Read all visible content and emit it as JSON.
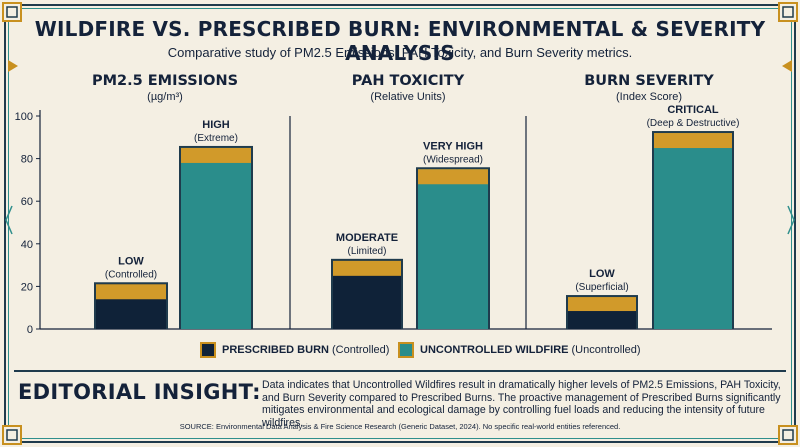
{
  "title": "WILDFIRE VS. PRESCRIBED BURN: ENVIRONMENTAL & SEVERITY ANALYSIS",
  "subtitle": "Comparative study of PM2.5 Emissions, PAH Toxicity, and Burn Severity metrics.",
  "panels": [
    {
      "title": "PM2.5 EMISSIONS",
      "sub": "(µg/m³)"
    },
    {
      "title": "PAH TOXICITY",
      "sub": "(Relative Units)"
    },
    {
      "title": "BURN SEVERITY",
      "sub": "(Index Score)"
    }
  ],
  "legend": {
    "prescribed_bold": "PRESCRIBED BURN",
    "prescribed_rest": "(Controlled)",
    "wildfire_bold": "UNCONTROLLED WILDFIRE",
    "wildfire_rest": "(Uncontrolled)"
  },
  "insight": {
    "heading": "EDITORIAL INSIGHT:",
    "text": "Data indicates that Uncontrolled Wildfires result in dramatically higher levels of PM2.5 Emissions, PAH Toxicity, and Burn Severity compared to Prescribed Burns. The proactive management of Prescribed Burns significantly mitigates environmental and ecological damage by controlling fuel loads and reducing the intensity of future wildfires."
  },
  "source": "SOURCE: Environmental Data Analysis & Fire Science Research (Generic Dataset, 2024). No specific real-world entities referenced.",
  "colors": {
    "navy": "#0f2238",
    "teal": "#2a8d8b",
    "gold": "#d19a2a",
    "frame": "#1f3b4d",
    "background": "#f4efe3"
  },
  "chart_data": {
    "type": "bar",
    "ylim": [
      0,
      100
    ],
    "yticks": [
      0,
      20,
      40,
      60,
      80,
      100
    ],
    "categories": [
      "PM2.5 EMISSIONS",
      "PAH TOXICITY",
      "BURN SEVERITY"
    ],
    "series": [
      {
        "name": "PRESCRIBED BURN",
        "values": [
          21,
          32,
          15
        ]
      },
      {
        "name": "UNCONTROLLED WILDFIRE",
        "values": [
          85,
          75,
          92
        ]
      }
    ],
    "bar_labels": [
      [
        {
          "main": "LOW",
          "sub": "(Controlled)"
        },
        {
          "main": "HIGH",
          "sub": "(Extreme)"
        }
      ],
      [
        {
          "main": "MODERATE",
          "sub": "(Limited)"
        },
        {
          "main": "VERY HIGH",
          "sub": "(Widespread)"
        }
      ],
      [
        {
          "main": "LOW",
          "sub": "(Superficial)"
        },
        {
          "main": "CRITICAL",
          "sub": "(Deep & Destructive)"
        }
      ]
    ]
  }
}
